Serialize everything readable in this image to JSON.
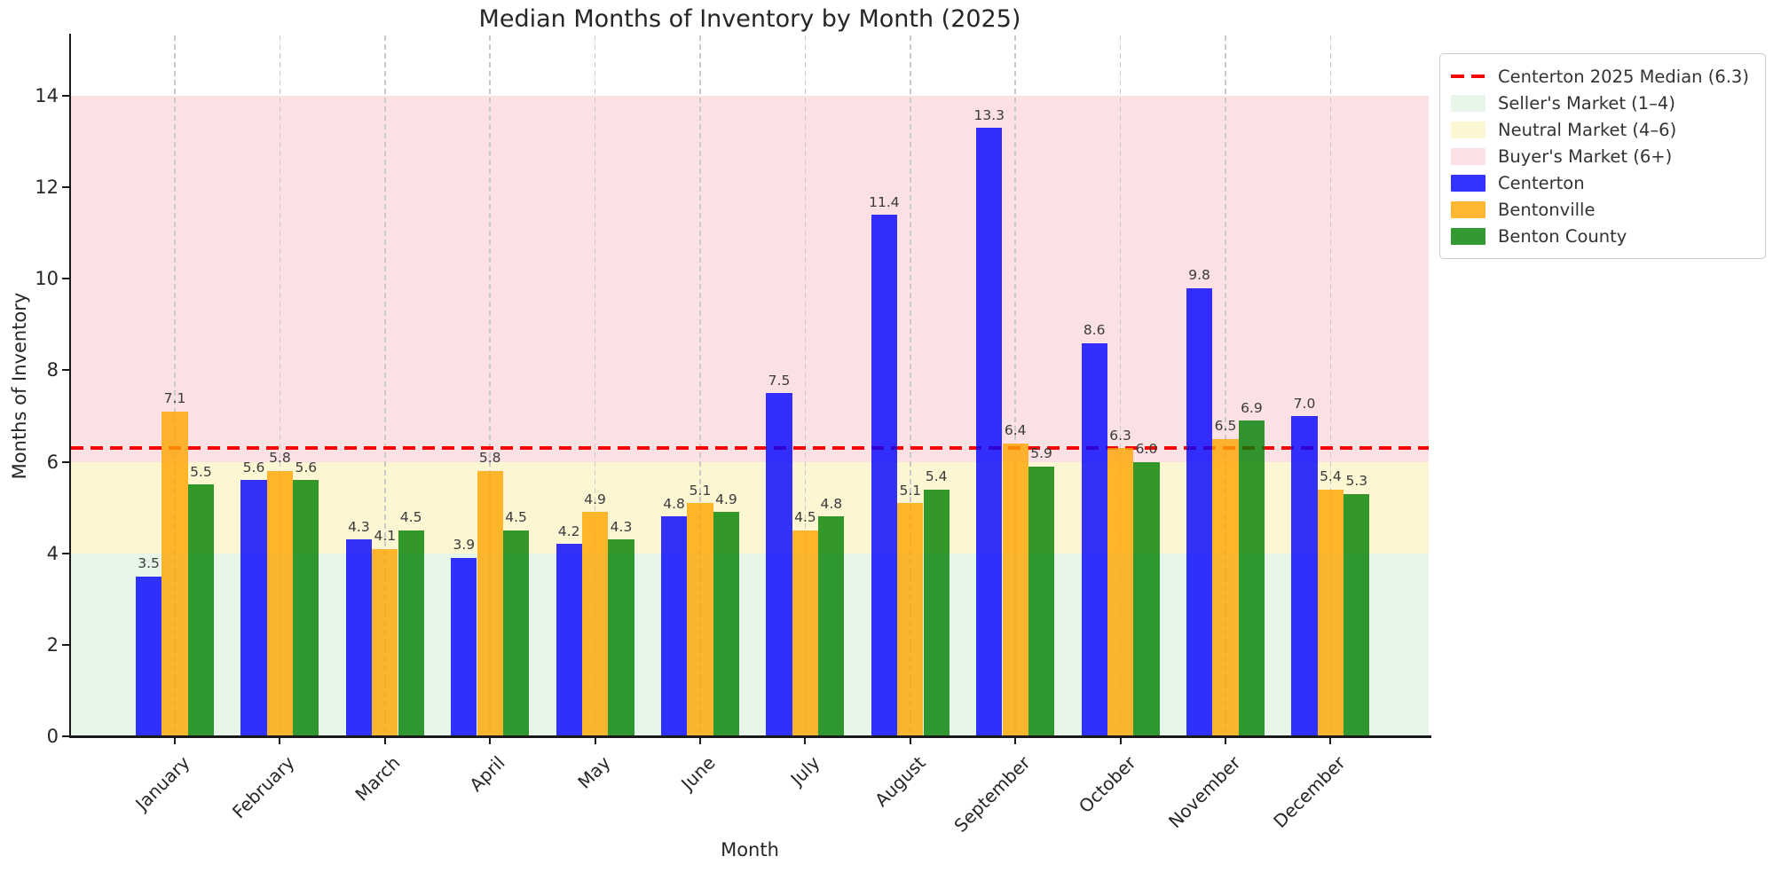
{
  "chart_data": {
    "type": "bar",
    "title": "Median Months of Inventory by Month (2025)",
    "xlabel": "Month",
    "ylabel": "Months of Inventory",
    "categories": [
      "January",
      "February",
      "March",
      "April",
      "May",
      "June",
      "July",
      "August",
      "September",
      "October",
      "November",
      "December"
    ],
    "series": [
      {
        "name": "Centerton",
        "color": "#0000ff",
        "values": [
          3.5,
          5.6,
          4.3,
          3.9,
          4.2,
          4.8,
          7.5,
          11.4,
          13.3,
          8.6,
          9.8,
          7.0
        ]
      },
      {
        "name": "Bentonville",
        "color": "#ffa500",
        "values": [
          7.1,
          5.8,
          4.1,
          5.8,
          4.9,
          5.1,
          4.5,
          5.1,
          6.4,
          6.3,
          6.5,
          5.4
        ]
      },
      {
        "name": "Benton County",
        "color": "#008000",
        "values": [
          5.5,
          5.6,
          4.5,
          4.5,
          4.3,
          4.9,
          4.8,
          5.4,
          5.9,
          6.0,
          6.9,
          5.3
        ]
      }
    ],
    "bands": [
      {
        "label": "Seller's Market (1–4)",
        "color": "#e7f6e9",
        "from": 0,
        "to": 4
      },
      {
        "label": "Neutral Market (4–6)",
        "color": "#fdf6d3",
        "from": 4,
        "to": 6
      },
      {
        "label": "Buyer's Market (6+)",
        "color": "#fbe0e4",
        "from": 6,
        "to": 14
      }
    ],
    "reference_line": {
      "label": "Centerton 2025 Median (6.3)",
      "value": 6.3,
      "color": "#f60505",
      "style": "dashed"
    },
    "yticks": [
      0,
      2,
      4,
      6,
      8,
      10,
      12,
      14
    ],
    "ylim": [
      0,
      15.32
    ],
    "bar_alpha": 0.8,
    "grid": "vertical dashed gridlines at each month",
    "legend_position": "upper right, outside plot",
    "value_label_format": "one decimal"
  },
  "colors": {
    "grid": "#c9c9c9",
    "spine": "#1a1a1a",
    "tick_text": "#262626",
    "bar_label_text": "#3a3a3a",
    "legend_border": "#cccccc"
  }
}
